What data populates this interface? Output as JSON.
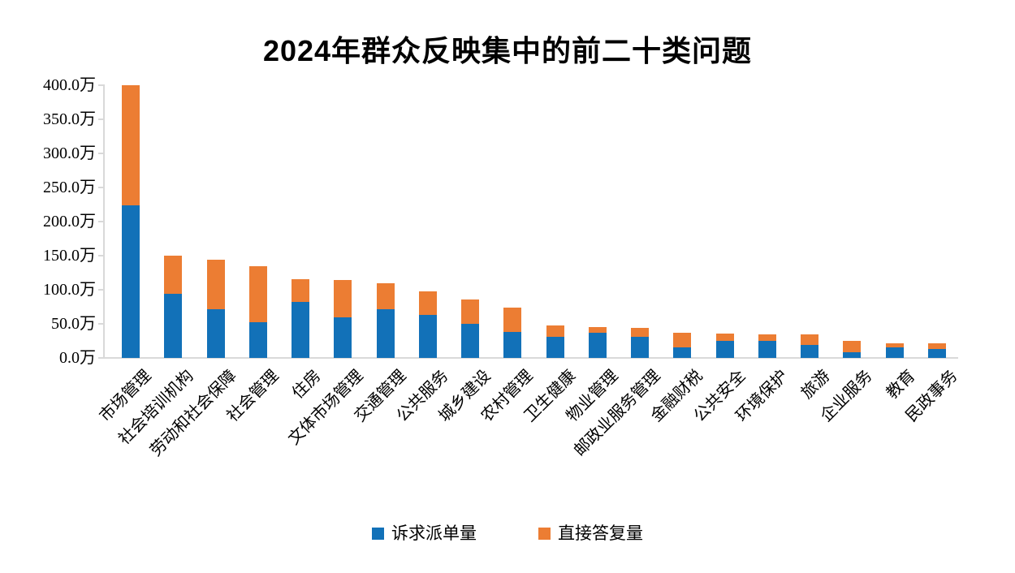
{
  "title": "2024年群众反映集中的前二十类问题",
  "legend": [
    {
      "label": "诉求派单量",
      "color": "#1271b8"
    },
    {
      "label": "直接答复量",
      "color": "#ec7d33"
    }
  ],
  "colors": {
    "bar_blue": "#1271b8",
    "bar_orange": "#ec7d33",
    "axis": "#d9d9d9",
    "text": "#000000"
  },
  "chart_data": {
    "type": "bar",
    "stacked": true,
    "title": "2024年群众反映集中的前二十类问题",
    "unit": "万",
    "categories": [
      "市场管理",
      "社会培训机构",
      "劳动和社会保障",
      "社会管理",
      "住房",
      "文体市场管理",
      "交通管理",
      "公共服务",
      "城乡建设",
      "农村管理",
      "卫生健康",
      "物业管理",
      "邮政业服务管理",
      "金融财税",
      "公共安全",
      "环境保护",
      "旅游",
      "企业服务",
      "教育",
      "民政事务"
    ],
    "series": [
      {
        "name": "诉求派单量",
        "color": "#1271b8",
        "values": [
          224,
          94,
          72,
          52,
          82,
          60,
          71,
          63,
          50,
          38,
          31,
          37,
          31,
          16,
          25,
          25,
          19,
          8,
          15,
          13
        ]
      },
      {
        "name": "直接答复量",
        "color": "#ec7d33",
        "values": [
          176,
          56,
          72,
          82,
          33,
          54,
          38,
          35,
          36,
          36,
          17,
          8,
          13,
          21,
          11,
          10,
          15,
          17,
          7,
          8
        ]
      }
    ],
    "totals": [
      400,
      150,
      144,
      134,
      115,
      114,
      109,
      98,
      86,
      74,
      48,
      45,
      44,
      37,
      36,
      35,
      34,
      25,
      22,
      21
    ],
    "y_axis": {
      "min": 0,
      "max": 400,
      "step": 50,
      "tick_labels": [
        "0.0万",
        "50.0万",
        "100.0万",
        "150.0万",
        "200.0万",
        "250.0万",
        "300.0万",
        "350.0万",
        "400.0万"
      ]
    },
    "grid": false,
    "legend_position": "bottom",
    "xlabel": "",
    "ylabel": ""
  }
}
